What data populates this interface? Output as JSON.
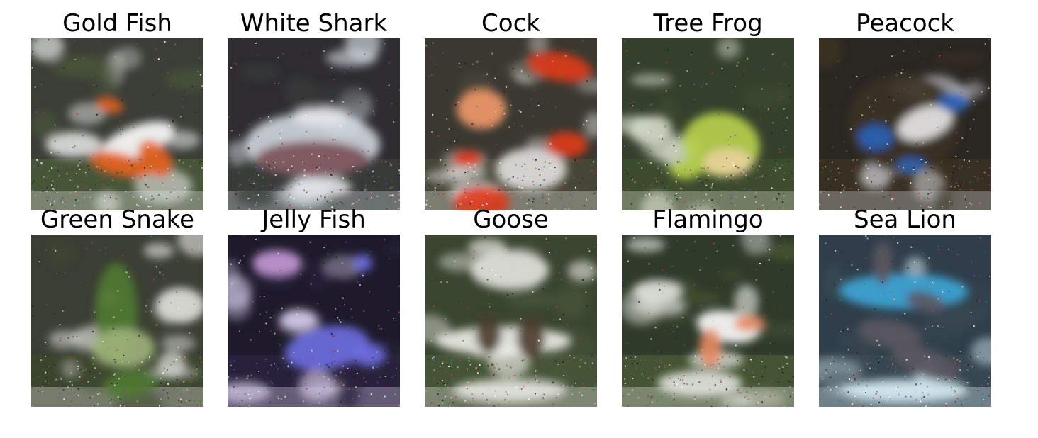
{
  "figure": {
    "panels": [
      {
        "title": "Gold Fish",
        "icon": "goldfish-image",
        "colors": {
          "bg": "#3b3d37",
          "light": "#dde0dc",
          "accent": "#e7621d",
          "accent2": "#ffffff",
          "ground": "#4a5a38"
        }
      },
      {
        "title": "White Shark",
        "icon": "white-shark-image",
        "colors": {
          "bg": "#2e2c31",
          "light": "#cfd6dd",
          "accent": "#e4e6ea",
          "accent2": "#7a4e56",
          "ground": "#3a3f3a"
        }
      },
      {
        "title": "Cock",
        "icon": "cock-image",
        "colors": {
          "bg": "#3a3830",
          "light": "#e3e1e0",
          "accent": "#e03a1a",
          "accent2": "#f29a6a",
          "ground": "#4a4a3a"
        }
      },
      {
        "title": "Tree Frog",
        "icon": "tree-frog-image",
        "colors": {
          "bg": "#34402c",
          "light": "#d5dac9",
          "accent": "#b9d34c",
          "accent2": "#e8d29a",
          "ground": "#3f4d2e"
        }
      },
      {
        "title": "Peacock",
        "icon": "peacock-image",
        "colors": {
          "bg": "#2a2622",
          "light": "#cfcfd4",
          "accent": "#2a63b8",
          "accent2": "#eaeaea",
          "ground": "#3b3222"
        }
      },
      {
        "title": "Green Snake",
        "icon": "green-snake-image",
        "colors": {
          "bg": "#3a3e34",
          "light": "#e3e3df",
          "accent": "#4f7a32",
          "accent2": "#9db37a",
          "ground": "#3c472d"
        }
      },
      {
        "title": "Jelly Fish",
        "icon": "jellyfish-image",
        "colors": {
          "bg": "#1e1a2c",
          "light": "#d3c9e7",
          "accent": "#6f6fe3",
          "accent2": "#c69ad8",
          "ground": "#2b2340"
        }
      },
      {
        "title": "Goose",
        "icon": "goose-image",
        "colors": {
          "bg": "#3a4530",
          "light": "#e6e5e0",
          "accent": "#4b3b2e",
          "accent2": "#f0efe9",
          "ground": "#48573a"
        }
      },
      {
        "title": "Flamingo",
        "icon": "flamingo-image",
        "colors": {
          "bg": "#2f3a2a",
          "light": "#e2e4df",
          "accent": "#e58a62",
          "accent2": "#ffffff",
          "ground": "#4a5a34"
        }
      },
      {
        "title": "Sea Lion",
        "icon": "sea-lion-image",
        "colors": {
          "bg": "#2f3e4a",
          "light": "#d7ecf4",
          "accent": "#5b5660",
          "accent2": "#3da6d8",
          "ground": "#3a4a52"
        }
      }
    ]
  }
}
